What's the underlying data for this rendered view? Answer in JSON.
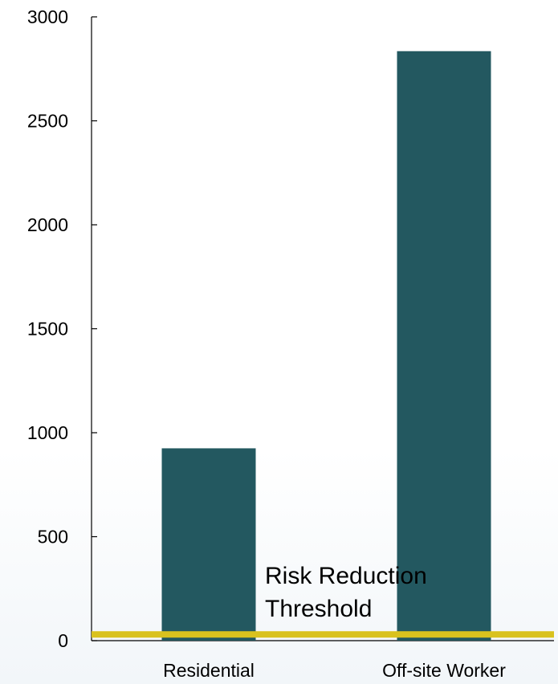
{
  "chart_data": {
    "type": "bar",
    "title": "",
    "xlabel": "",
    "ylabel": "",
    "categories": [
      "Residential",
      "Off-site Worker"
    ],
    "values": [
      925,
      2835
    ],
    "ylim": [
      0,
      3000
    ],
    "yticks": [
      0,
      500,
      1000,
      1500,
      2000,
      2500,
      3000
    ],
    "ytick_labels": [
      "0",
      "500",
      "1000",
      "1500",
      "2000",
      "2500",
      "3000"
    ],
    "bar_color": "#235860",
    "grid": false,
    "legend": "none",
    "threshold": {
      "label_line1": "Risk Reduction",
      "label_line2": "Threshold",
      "value": 30,
      "color": "#d9c21e"
    }
  }
}
